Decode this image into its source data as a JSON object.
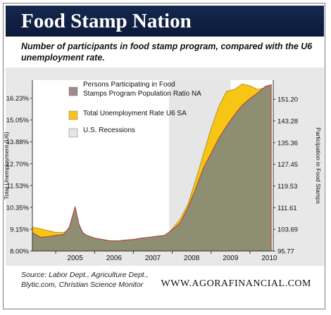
{
  "header": {
    "title": "Food Stamp Nation",
    "subtitle": "Number of participants in food stamp program, compared with the U6 unemployment rate."
  },
  "footer": {
    "source": "Source: Labor Dept., Agriculture Dept., Blytic.com, Christian Science Monitor",
    "site": "WWW.AGORAFINANCIAL.COM"
  },
  "colors": {
    "banner": "#15284f",
    "food_stamp_fill": "#8e8e72",
    "unemployment_fill": "#f7c614",
    "recession_shade": "#e6e6e6",
    "legend_food_stamp": "#a08a8a"
  },
  "chart_data": {
    "type": "area",
    "xlabel": "",
    "ylabel": "Total Unemployment (U6)",
    "y2label": "Participation in Food Stamps",
    "x_ticks": [
      "2005",
      "2006",
      "2007",
      "2008",
      "2009",
      "2010"
    ],
    "y_ticks": [
      "8.00%",
      "9.15%",
      "10.35%",
      "11.53%",
      "12.70%",
      "13.88%",
      "15.05%",
      "16.23%"
    ],
    "y2_ticks": [
      "95.77",
      "103.69",
      "111.61",
      "119.53",
      "127.45",
      "135.36",
      "143.28",
      "151.20"
    ],
    "ylim": [
      8.0,
      17.2
    ],
    "y2lim": [
      95.77,
      158.2
    ],
    "xlim": [
      2004.4,
      2010.6
    ],
    "legend": [
      "Persons Participating in Food Stamps Program Population Ratio NA",
      "Total Unemployment Rate U6 SA",
      "U.S. Recessions"
    ],
    "legend_position": "top-left",
    "recessions": [
      [
        2007.92,
        2009.5
      ]
    ],
    "series": [
      {
        "name": "Total Unemployment Rate U6 SA",
        "axis": "left",
        "x": [
          2004.4,
          2004.6,
          2004.8,
          2005.0,
          2005.2,
          2005.4,
          2005.6,
          2005.8,
          2006.0,
          2006.2,
          2006.4,
          2006.6,
          2006.8,
          2007.0,
          2007.2,
          2007.4,
          2007.6,
          2007.8,
          2008.0,
          2008.2,
          2008.4,
          2008.6,
          2008.8,
          2009.0,
          2009.2,
          2009.4,
          2009.6,
          2009.8,
          2010.0,
          2010.2,
          2010.4,
          2010.55
        ],
        "values": [
          9.3,
          9.2,
          9.1,
          9.0,
          9.0,
          9.2,
          8.9,
          8.5,
          8.3,
          8.3,
          8.2,
          8.15,
          8.15,
          8.2,
          8.25,
          8.3,
          8.5,
          8.7,
          9.2,
          9.7,
          10.5,
          11.8,
          13.2,
          14.6,
          15.8,
          16.6,
          16.7,
          17.0,
          16.9,
          16.7,
          16.8,
          16.5
        ]
      },
      {
        "name": "Persons Participating in Food Stamps Program Population Ratio NA",
        "axis": "right",
        "x": [
          2004.4,
          2004.6,
          2004.8,
          2005.0,
          2005.2,
          2005.35,
          2005.5,
          2005.6,
          2005.7,
          2005.8,
          2006.0,
          2006.2,
          2006.4,
          2006.6,
          2006.8,
          2007.0,
          2007.2,
          2007.4,
          2007.6,
          2007.8,
          2008.0,
          2008.2,
          2008.4,
          2008.6,
          2008.8,
          2009.0,
          2009.2,
          2009.4,
          2009.6,
          2009.8,
          2010.0,
          2010.2,
          2010.4,
          2010.55
        ],
        "values": [
          102.5,
          100.8,
          101.0,
          101.5,
          101.8,
          104.5,
          112.0,
          105.5,
          102.5,
          101.5,
          100.5,
          100.0,
          99.5,
          99.5,
          99.8,
          100.0,
          100.5,
          100.8,
          101.2,
          101.5,
          103.5,
          106.0,
          111.5,
          118.5,
          126.0,
          131.5,
          137.0,
          141.5,
          145.5,
          149.0,
          151.5,
          153.5,
          156.0,
          156.5
        ]
      }
    ]
  }
}
